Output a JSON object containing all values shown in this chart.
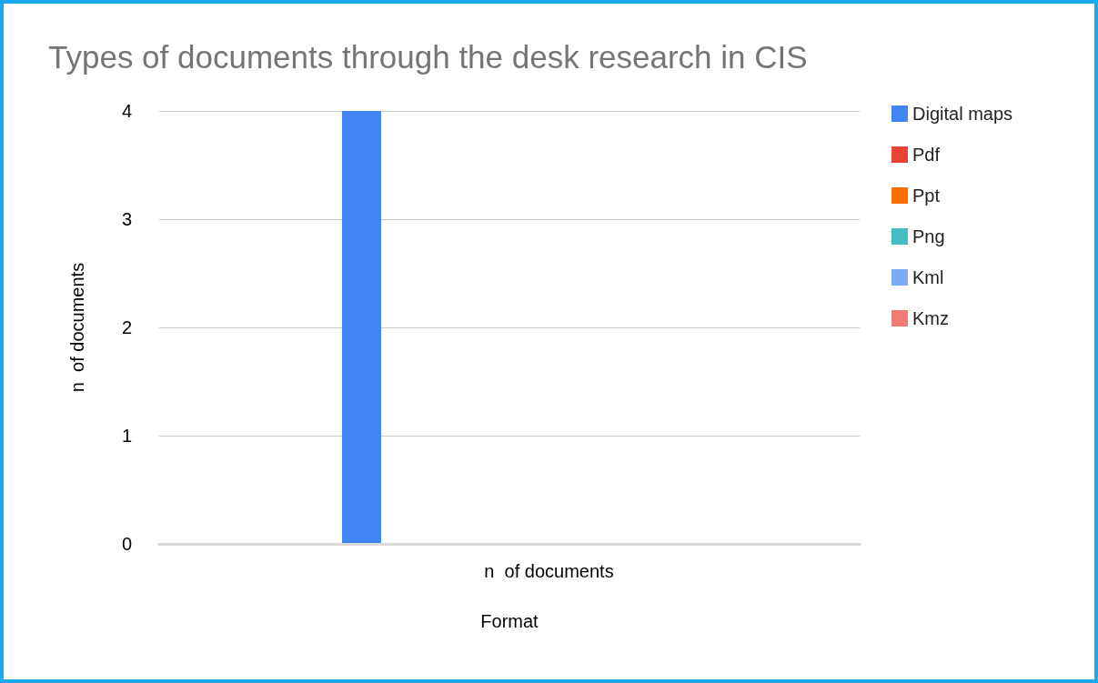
{
  "chart_data": {
    "type": "bar",
    "title": "Types of documents through the desk research in CIS",
    "xlabel": "Format",
    "ylabel": "n  of documents",
    "categories": [
      null
    ],
    "annotations": [
      "n  of documents"
    ],
    "series": [
      {
        "name": "Digital maps",
        "color": "#4285f4",
        "values": [
          4
        ]
      },
      {
        "name": "Pdf",
        "color": "#ea4335",
        "values": [
          0
        ]
      },
      {
        "color": "#fbbc04",
        "values": [
          0
        ]
      },
      {
        "color": "#34a853",
        "values": [
          0
        ]
      },
      {
        "name": "Ppt",
        "color": "#ff6d01",
        "values": [
          0
        ]
      },
      {
        "name": "Png",
        "color": "#46bdc6",
        "values": [
          0
        ]
      },
      {
        "name": "Kml",
        "color": "#7baaf7",
        "values": [
          0
        ]
      },
      {
        "name": "Kmz",
        "color": "#f07b72",
        "values": [
          0
        ]
      }
    ],
    "ylim": [
      0,
      4
    ],
    "yticks": [
      0,
      1,
      2,
      3,
      4
    ],
    "grid": "y",
    "legend": "right"
  }
}
